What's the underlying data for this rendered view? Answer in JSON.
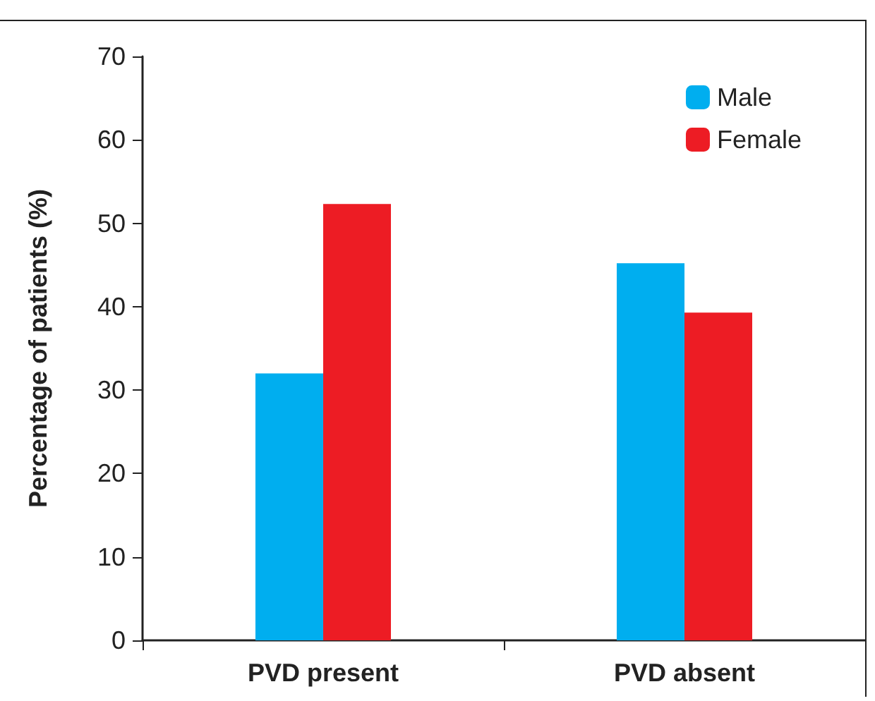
{
  "chart_data": {
    "type": "bar",
    "ylabel": "Percentage of patients (%)",
    "categories": [
      "PVD present",
      "PVD absent"
    ],
    "series": [
      {
        "name": "Male",
        "color": "#00aeef",
        "values": [
          32,
          45.2
        ]
      },
      {
        "name": "Female",
        "color": "#ed1c24",
        "values": [
          52.3,
          39.3
        ]
      }
    ],
    "ylim": [
      0,
      70
    ],
    "yticks": [
      0,
      10,
      20,
      30,
      40,
      50,
      60,
      70
    ],
    "grid": false,
    "legend": "top right"
  }
}
